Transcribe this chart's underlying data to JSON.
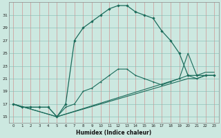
{
  "xlabel": "Humidex (Indice chaleur)",
  "bg_color": "#cce8e0",
  "line_color": "#1a6b5a",
  "xlim": [
    -0.5,
    23.5
  ],
  "ylim": [
    14.0,
    33.0
  ],
  "yticks": [
    15,
    17,
    19,
    21,
    23,
    25,
    27,
    29,
    31
  ],
  "xticks": [
    0,
    1,
    2,
    3,
    4,
    5,
    6,
    7,
    8,
    9,
    10,
    11,
    12,
    13,
    14,
    15,
    16,
    17,
    18,
    19,
    20,
    21,
    22,
    23
  ],
  "line_peak_x": [
    0,
    1,
    2,
    3,
    4,
    5,
    6,
    7,
    8,
    9,
    10,
    11,
    12,
    13,
    14,
    15,
    16,
    17,
    18,
    19,
    20,
    21,
    22,
    23
  ],
  "line_peak_y": [
    17.0,
    16.5,
    16.5,
    16.5,
    16.5,
    15.0,
    17.0,
    27.0,
    29.0,
    30.0,
    31.0,
    32.0,
    32.5,
    32.5,
    31.5,
    31.0,
    30.5,
    28.5,
    27.0,
    25.0,
    21.5,
    21.5,
    21.5,
    21.5
  ],
  "line_low_x": [
    0,
    1,
    2,
    3,
    4,
    5,
    6,
    7,
    8,
    9,
    10,
    11,
    12,
    13,
    14,
    15,
    16,
    17,
    18,
    19,
    20,
    21,
    22,
    23
  ],
  "line_low_y": [
    17.0,
    16.5,
    16.5,
    16.5,
    16.5,
    15.0,
    16.5,
    17.0,
    19.0,
    19.5,
    20.5,
    21.5,
    22.5,
    22.5,
    21.5,
    21.0,
    20.5,
    20.0,
    20.5,
    21.0,
    21.5,
    21.0,
    21.5,
    21.5
  ],
  "line_diag1_x": [
    0,
    5,
    20,
    21,
    22,
    23
  ],
  "line_diag1_y": [
    17.0,
    15.0,
    21.0,
    21.0,
    21.5,
    21.5
  ],
  "line_diag2_x": [
    0,
    5,
    19,
    20,
    21,
    22,
    23
  ],
  "line_diag2_y": [
    17.0,
    15.0,
    21.0,
    25.0,
    21.5,
    22.0,
    22.0
  ]
}
